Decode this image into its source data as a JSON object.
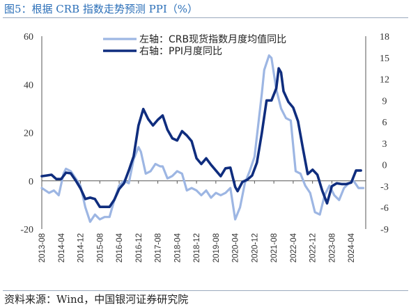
{
  "page": {
    "title": "图5：根据 CRB 指数走势预测 PPI（%）",
    "source": "资料来源：Wind，中国银河证券研究院"
  },
  "chart_data": {
    "type": "line",
    "left_axis": {
      "ticks": [
        60,
        40,
        20,
        0,
        -20
      ],
      "range": [
        -20,
        60
      ]
    },
    "right_axis": {
      "ticks": [
        18,
        15,
        12,
        9,
        6,
        3,
        0,
        -3,
        -6,
        -9
      ],
      "range": [
        -9,
        18
      ]
    },
    "x_ticks": [
      "2013-08",
      "2014-04",
      "2014-12",
      "2015-08",
      "2016-04",
      "2016-12",
      "2017-08",
      "2018-04",
      "2018-12",
      "2019-08",
      "2020-04",
      "2020-12",
      "2021-08",
      "2022-04",
      "2022-12",
      "2023-08",
      "2024-04"
    ],
    "x_range": [
      "2013-08",
      "2024-10"
    ],
    "legend_position": "top-center",
    "colors": {
      "crb": "#9db6e3",
      "ppi": "#0f2d7e"
    },
    "series": [
      {
        "name": "左轴：CRB现货指数月度均值同比",
        "axis": "left",
        "points": [
          [
            "2013-08",
            -3
          ],
          [
            "2013-11",
            -5
          ],
          [
            "2014-01",
            -4
          ],
          [
            "2014-03",
            -6
          ],
          [
            "2014-05",
            3
          ],
          [
            "2014-06",
            5
          ],
          [
            "2014-08",
            4
          ],
          [
            "2014-10",
            1
          ],
          [
            "2014-12",
            -2
          ],
          [
            "2015-02",
            -11
          ],
          [
            "2015-04",
            -17
          ],
          [
            "2015-06",
            -14
          ],
          [
            "2015-08",
            -16
          ],
          [
            "2015-10",
            -15
          ],
          [
            "2015-12",
            -15
          ],
          [
            "2016-02",
            -8
          ],
          [
            "2016-04",
            -2
          ],
          [
            "2016-06",
            0
          ],
          [
            "2016-08",
            -1
          ],
          [
            "2016-10",
            9
          ],
          [
            "2016-12",
            14
          ],
          [
            "2017-01",
            12
          ],
          [
            "2017-03",
            3
          ],
          [
            "2017-05",
            4
          ],
          [
            "2017-07",
            7
          ],
          [
            "2017-09",
            6
          ],
          [
            "2017-10",
            6
          ],
          [
            "2017-12",
            1
          ],
          [
            "2018-02",
            2
          ],
          [
            "2018-04",
            4
          ],
          [
            "2018-06",
            3
          ],
          [
            "2018-08",
            -4
          ],
          [
            "2018-10",
            -3
          ],
          [
            "2018-12",
            -4
          ],
          [
            "2019-02",
            -6
          ],
          [
            "2019-04",
            -4
          ],
          [
            "2019-06",
            -7
          ],
          [
            "2019-08",
            -5
          ],
          [
            "2019-10",
            -6
          ],
          [
            "2019-12",
            -5
          ],
          [
            "2020-02",
            -3
          ],
          [
            "2020-04",
            -16
          ],
          [
            "2020-06",
            -11
          ],
          [
            "2020-08",
            -1
          ],
          [
            "2020-10",
            4
          ],
          [
            "2020-12",
            10
          ],
          [
            "2021-03",
            36
          ],
          [
            "2021-04",
            46
          ],
          [
            "2021-06",
            52
          ],
          [
            "2021-07",
            51
          ],
          [
            "2021-09",
            38
          ],
          [
            "2021-11",
            30
          ],
          [
            "2022-01",
            26
          ],
          [
            "2022-03",
            25
          ],
          [
            "2022-05",
            4
          ],
          [
            "2022-07",
            3
          ],
          [
            "2022-09",
            -2
          ],
          [
            "2022-11",
            -5
          ],
          [
            "2023-01",
            -13
          ],
          [
            "2023-03",
            -14
          ],
          [
            "2023-05",
            -6
          ],
          [
            "2023-07",
            -2
          ],
          [
            "2023-09",
            -6
          ],
          [
            "2023-11",
            -8
          ],
          [
            "2024-01",
            -3
          ],
          [
            "2024-03",
            -1
          ],
          [
            "2024-05",
            0
          ],
          [
            "2024-07",
            -3
          ],
          [
            "2024-09",
            -3
          ]
        ]
      },
      {
        "name": "右轴：PPI月度同比",
        "axis": "right",
        "points": [
          [
            "2013-08",
            -1.6
          ],
          [
            "2013-10",
            -1.5
          ],
          [
            "2013-12",
            -1.4
          ],
          [
            "2014-02",
            -2.0
          ],
          [
            "2014-04",
            -2.0
          ],
          [
            "2014-06",
            -1.1
          ],
          [
            "2014-08",
            -1.2
          ],
          [
            "2014-10",
            -2.2
          ],
          [
            "2014-12",
            -3.3
          ],
          [
            "2015-02",
            -4.8
          ],
          [
            "2015-04",
            -4.6
          ],
          [
            "2015-06",
            -4.8
          ],
          [
            "2015-08",
            -5.9
          ],
          [
            "2015-10",
            -5.9
          ],
          [
            "2015-12",
            -5.9
          ],
          [
            "2016-02",
            -4.9
          ],
          [
            "2016-04",
            -3.4
          ],
          [
            "2016-06",
            -2.6
          ],
          [
            "2016-08",
            -0.8
          ],
          [
            "2016-10",
            1.2
          ],
          [
            "2016-12",
            5.5
          ],
          [
            "2017-02",
            7.8
          ],
          [
            "2017-04",
            6.4
          ],
          [
            "2017-06",
            5.5
          ],
          [
            "2017-08",
            6.3
          ],
          [
            "2017-10",
            6.9
          ],
          [
            "2017-12",
            4.9
          ],
          [
            "2018-02",
            3.7
          ],
          [
            "2018-04",
            3.4
          ],
          [
            "2018-06",
            4.7
          ],
          [
            "2018-08",
            4.1
          ],
          [
            "2018-10",
            3.3
          ],
          [
            "2018-12",
            0.9
          ],
          [
            "2019-02",
            0.1
          ],
          [
            "2019-04",
            0.9
          ],
          [
            "2019-06",
            0
          ],
          [
            "2019-08",
            -0.8
          ],
          [
            "2019-10",
            -1.6
          ],
          [
            "2019-12",
            -0.5
          ],
          [
            "2020-02",
            -0.4
          ],
          [
            "2020-04",
            -3.1
          ],
          [
            "2020-05",
            -3.7
          ],
          [
            "2020-07",
            -2.4
          ],
          [
            "2020-09",
            -2.1
          ],
          [
            "2020-11",
            -1.5
          ],
          [
            "2021-01",
            0.3
          ],
          [
            "2021-03",
            4.4
          ],
          [
            "2021-05",
            9.0
          ],
          [
            "2021-07",
            9.0
          ],
          [
            "2021-09",
            10.7
          ],
          [
            "2021-10",
            13.5
          ],
          [
            "2021-11",
            12.9
          ],
          [
            "2021-12",
            10.3
          ],
          [
            "2022-02",
            8.8
          ],
          [
            "2022-04",
            8.0
          ],
          [
            "2022-06",
            6.1
          ],
          [
            "2022-08",
            2.3
          ],
          [
            "2022-10",
            -1.3
          ],
          [
            "2022-12",
            -0.7
          ],
          [
            "2023-02",
            -1.4
          ],
          [
            "2023-04",
            -3.6
          ],
          [
            "2023-06",
            -5.4
          ],
          [
            "2023-08",
            -3.0
          ],
          [
            "2023-10",
            -2.6
          ],
          [
            "2023-12",
            -2.7
          ],
          [
            "2024-02",
            -2.7
          ],
          [
            "2024-04",
            -2.5
          ],
          [
            "2024-06",
            -0.8
          ],
          [
            "2024-08",
            -0.8
          ]
        ]
      }
    ]
  }
}
